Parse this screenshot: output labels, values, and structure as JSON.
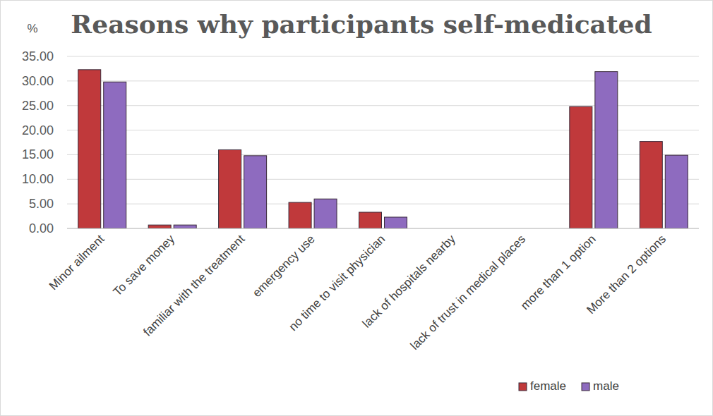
{
  "chart_data": {
    "type": "bar",
    "title": "Reasons why participants self-medicated",
    "y_label": "%",
    "categories": [
      "Minor ailment",
      "To save money",
      "familiar with the treatment",
      "emergency use",
      "no time to visit physician",
      "lack of hospitals nearby",
      "lack of trust in medical places",
      "more than 1 option",
      "More than 2 options"
    ],
    "series": [
      {
        "name": "female",
        "color": "#c0393b",
        "values": [
          32.3,
          0.7,
          16.0,
          5.3,
          3.3,
          0,
          0,
          24.8,
          17.7
        ]
      },
      {
        "name": "male",
        "color": "#8e6bbf",
        "values": [
          29.8,
          0.7,
          14.8,
          6.0,
          2.3,
          0,
          0,
          31.9,
          14.9
        ]
      }
    ],
    "ylim": [
      0,
      35
    ],
    "yticks": [
      {
        "value": 0,
        "label": "0.00"
      },
      {
        "value": 5,
        "label": "5.00"
      },
      {
        "value": 10,
        "label": "10.00"
      },
      {
        "value": 15,
        "label": "15.00"
      },
      {
        "value": 20,
        "label": "20.00"
      },
      {
        "value": 25,
        "label": "25.00"
      },
      {
        "value": 30,
        "label": "30.00"
      },
      {
        "value": 35,
        "label": "35.00"
      }
    ],
    "grid": true,
    "legend": "bottom-right"
  }
}
